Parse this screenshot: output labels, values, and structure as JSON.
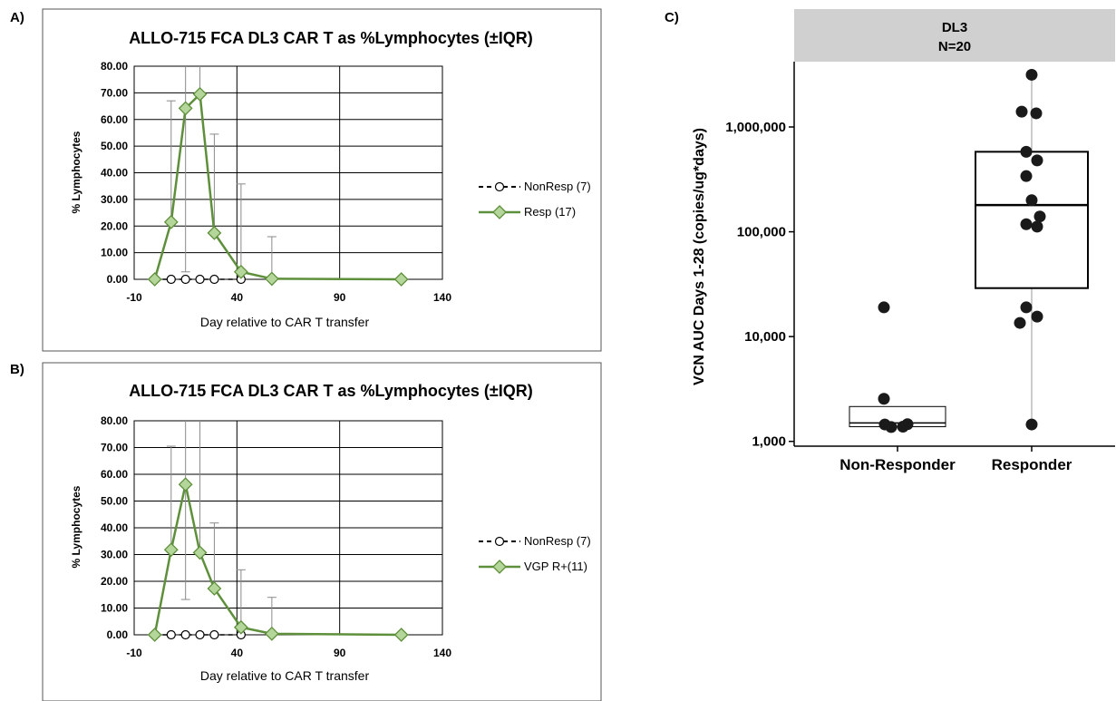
{
  "chart_data": [
    {
      "panel": "A)",
      "type": "line",
      "title": "ALLO-715 FCA DL3 CAR T as %Lymphocytes (±IQR)",
      "xlabel": "Day relative to CAR T transfer",
      "ylabel": "% Lymphocytes",
      "xlim": [
        -10,
        140
      ],
      "ylim": [
        0,
        80
      ],
      "x_ticks": [
        "-10",
        "40",
        "90",
        "140"
      ],
      "y_ticks": [
        "0.00",
        "10.00",
        "20.00",
        "30.00",
        "40.00",
        "50.00",
        "60.00",
        "70.00",
        "80.00"
      ],
      "x_tick_values": [
        -10,
        40,
        90,
        140
      ],
      "y_tick_values": [
        0,
        10,
        20,
        30,
        40,
        50,
        60,
        70,
        80
      ],
      "grid": true,
      "legend_position": "right",
      "series": [
        {
          "name": "NonResp (7)",
          "style": "dashed-open-circle",
          "x": [
            0,
            8,
            15,
            22,
            29,
            42
          ],
          "y": [
            0,
            0,
            0,
            0,
            0,
            0
          ],
          "err_upper": [
            null,
            null,
            null,
            null,
            null,
            null
          ]
        },
        {
          "name": "Resp (17)",
          "style": "green-diamond",
          "color": "#5e8f3b",
          "fill": "#b5d69a",
          "x": [
            0,
            8,
            15,
            22,
            29,
            42,
            57,
            120
          ],
          "y": [
            0,
            21.5,
            64.2,
            69.5,
            17.4,
            2.8,
            0.2,
            0
          ],
          "err_upper": [
            null,
            67,
            80,
            80,
            54.5,
            35.8,
            16,
            null
          ],
          "err_lower": [
            null,
            null,
            2.8,
            null,
            null,
            null,
            null,
            null
          ]
        }
      ]
    },
    {
      "panel": "B)",
      "type": "line",
      "title": "ALLO-715 FCA DL3 CAR T as %Lymphocytes (±IQR)",
      "xlabel": "Day relative to CAR T transfer",
      "ylabel": "% Lymphocytes",
      "xlim": [
        -10,
        140
      ],
      "ylim": [
        0,
        80
      ],
      "x_ticks": [
        "-10",
        "40",
        "90",
        "140"
      ],
      "y_ticks": [
        "0.00",
        "10.00",
        "20.00",
        "30.00",
        "40.00",
        "50.00",
        "60.00",
        "70.00",
        "80.00"
      ],
      "x_tick_values": [
        -10,
        40,
        90,
        140
      ],
      "y_tick_values": [
        0,
        10,
        20,
        30,
        40,
        50,
        60,
        70,
        80
      ],
      "grid": true,
      "legend_position": "right",
      "series": [
        {
          "name": "NonResp (7)",
          "style": "dashed-open-circle",
          "x": [
            0,
            8,
            15,
            22,
            29,
            42
          ],
          "y": [
            0,
            0,
            0,
            0,
            0,
            0
          ],
          "err_upper": [
            null,
            null,
            null,
            null,
            null,
            null
          ]
        },
        {
          "name": "VGP R+(11)",
          "style": "green-diamond",
          "color": "#5e8f3b",
          "fill": "#b5d69a",
          "x": [
            0,
            8,
            15,
            22,
            29,
            42,
            57,
            120
          ],
          "y": [
            0,
            31.8,
            56.2,
            30.7,
            17.3,
            2.8,
            0.4,
            0
          ],
          "err_upper": [
            null,
            70.5,
            80,
            80,
            41.8,
            24.3,
            14,
            null
          ],
          "err_lower": [
            null,
            null,
            13.2,
            null,
            null,
            null,
            null,
            null
          ]
        }
      ]
    },
    {
      "panel": "C)",
      "type": "box",
      "strip": [
        "DL3",
        "N=20"
      ],
      "ylabel": "VCN AUC Days 1-28 (copies/ug*days)",
      "yscale": "log",
      "ylim": [
        900,
        4200000
      ],
      "y_ticks": [
        "1,000",
        "10,000",
        "100,000",
        "1,000,000"
      ],
      "y_tick_values": [
        1000,
        10000,
        100000,
        1000000
      ],
      "categories": [
        "Non-Responder",
        "Responder"
      ],
      "boxes": [
        {
          "category": "Non-Responder",
          "q1": 1380,
          "median": 1500,
          "q3": 2150,
          "whisker_low": 1380,
          "whisker_high": 2150
        },
        {
          "category": "Responder",
          "q1": 29000,
          "median": 180000,
          "q3": 580000,
          "whisker_low": 1450,
          "whisker_high": 3150000
        }
      ],
      "points": [
        {
          "category": "Non-Responder",
          "values": [
            19000,
            2550,
            1450,
            1370,
            1380,
            1460
          ]
        },
        {
          "category": "Responder",
          "values": [
            3150000,
            1400000,
            1350000,
            580000,
            480000,
            340000,
            200000,
            140000,
            118000,
            112000,
            19000,
            15500,
            13500,
            1450
          ]
        }
      ]
    }
  ]
}
